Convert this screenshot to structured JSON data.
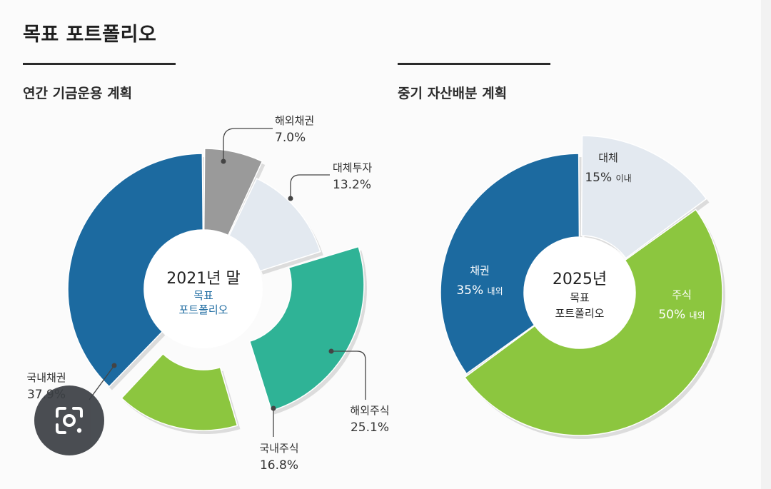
{
  "page": {
    "title": "목표 포트폴리오"
  },
  "chart_data": [
    {
      "type": "pie",
      "subtitle": "연간 기금운용 계획",
      "center_label": {
        "line1": "2021년 말",
        "line2": "목표",
        "line3": "포트폴리오"
      },
      "slices": [
        {
          "label": "국내채권",
          "value": 37.9,
          "value_text": "37.9%",
          "color": "#1c6aa0"
        },
        {
          "label": "해외채권",
          "value": 7.0,
          "value_text": "7.0%",
          "color": "#9a9a9a"
        },
        {
          "label": "대체투자",
          "value": 13.2,
          "value_text": "13.2%",
          "color": "#e3e9f0"
        },
        {
          "label": "해외주식",
          "value": 25.1,
          "value_text": "25.1%",
          "color": "#2fb396"
        },
        {
          "label": "국내주식",
          "value": 16.8,
          "value_text": "16.8%",
          "color": "#8cc63f"
        }
      ]
    },
    {
      "type": "pie",
      "subtitle": "중기 자산배분 계획",
      "center_label": {
        "line1": "2025년",
        "line2": "목표",
        "line3": "포트폴리오"
      },
      "slices": [
        {
          "label": "대체",
          "value": 15,
          "value_text": "15%",
          "qualifier": "이내",
          "color": "#e3e9f0"
        },
        {
          "label": "주식",
          "value": 50,
          "value_text": "50%",
          "qualifier": "내외",
          "color": "#8cc63f"
        },
        {
          "label": "채권",
          "value": 35,
          "value_text": "35%",
          "qualifier": "내외",
          "color": "#1c6aa0"
        }
      ]
    }
  ],
  "colors": {
    "center_accent": "#1c6aa0",
    "leader_line": "#444444",
    "inner_label_text": "#ffffff"
  },
  "icons": {
    "lens_button": "google-lens-icon"
  }
}
